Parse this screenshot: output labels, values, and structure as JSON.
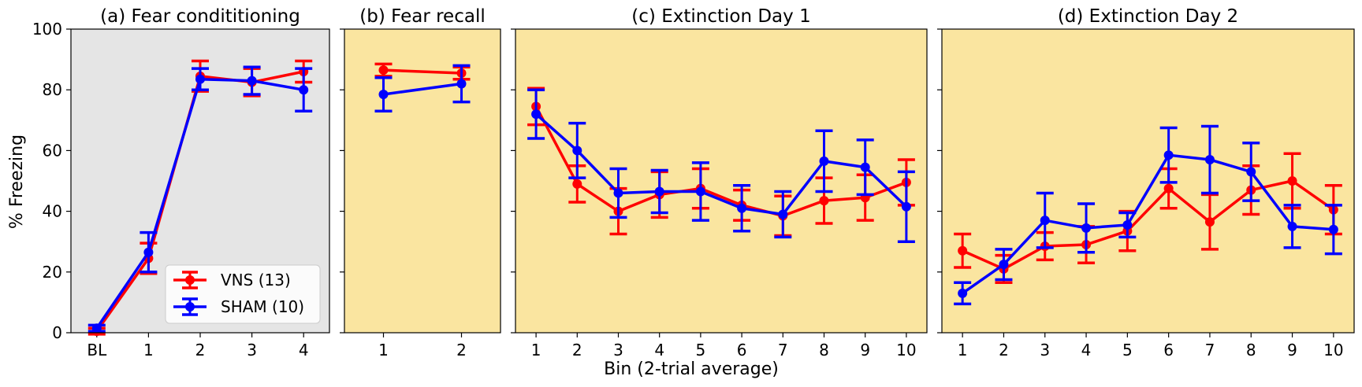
{
  "ylabel": "% Freezing",
  "xlabel": "Bin (2-trial average)",
  "colors": {
    "VNS": "#ff0000",
    "SHAM": "#0000ff",
    "bg_conditioning": "#e5e5e5",
    "bg_other": "#fae5a0"
  },
  "legend": [
    "VNS (13)",
    "SHAM (10)"
  ],
  "legend_placement": "lower-right (panel a)",
  "chart_data": [
    {
      "type": "line",
      "title": "(a) Fear condititioning",
      "categories": [
        "BL",
        "1",
        "2",
        "3",
        "4"
      ],
      "ylim": [
        0,
        100
      ],
      "yticks": [
        "0",
        "20",
        "40",
        "60",
        "80",
        "100"
      ],
      "series": [
        {
          "name": "VNS (13)",
          "values": [
            0.5,
            24.5,
            84.5,
            82.5,
            86
          ],
          "errors": [
            1,
            5,
            5,
            4.5,
            3.5
          ]
        },
        {
          "name": "SHAM (10)",
          "values": [
            1.5,
            26.5,
            83.5,
            83,
            80
          ],
          "errors": [
            1,
            6.5,
            3.5,
            4.5,
            7
          ]
        }
      ]
    },
    {
      "type": "line",
      "title": "(b) Fear recall",
      "categories": [
        "1",
        "2"
      ],
      "ylim": [
        0,
        100
      ],
      "series": [
        {
          "name": "VNS (13)",
          "values": [
            86.5,
            85.5
          ],
          "errors": [
            2,
            2
          ]
        },
        {
          "name": "SHAM (10)",
          "values": [
            78.5,
            82
          ],
          "errors": [
            5.5,
            6
          ]
        }
      ]
    },
    {
      "type": "line",
      "title": "(c) Extinction Day 1",
      "categories": [
        "1",
        "2",
        "3",
        "4",
        "5",
        "6",
        "7",
        "8",
        "9",
        "10"
      ],
      "ylim": [
        0,
        100
      ],
      "series": [
        {
          "name": "VNS (13)",
          "values": [
            74.5,
            49,
            40,
            45.5,
            47.5,
            42,
            38.5,
            43.5,
            44.5,
            49.5
          ],
          "errors": [
            6,
            6,
            7.5,
            7.5,
            6.5,
            5,
            6.5,
            7.5,
            7.5,
            7.5
          ]
        },
        {
          "name": "SHAM (10)",
          "values": [
            72,
            60,
            46,
            46.5,
            46.5,
            41,
            39,
            56.5,
            54.5,
            41.5
          ],
          "errors": [
            8,
            9,
            8,
            7,
            9.5,
            7.5,
            7.5,
            10,
            9,
            11.5
          ]
        }
      ]
    },
    {
      "type": "line",
      "title": "(d) Extinction Day 2",
      "categories": [
        "1",
        "2",
        "3",
        "4",
        "5",
        "6",
        "7",
        "8",
        "9",
        "10"
      ],
      "ylim": [
        0,
        100
      ],
      "series": [
        {
          "name": "VNS (13)",
          "values": [
            27,
            21,
            28.5,
            29,
            33.5,
            47.5,
            36.5,
            47,
            50,
            40.5
          ],
          "errors": [
            5.5,
            4.5,
            4.5,
            6,
            6.5,
            6.5,
            9,
            8,
            9,
            8
          ]
        },
        {
          "name": "SHAM (10)",
          "values": [
            13,
            22.5,
            37,
            34.5,
            35.5,
            58.5,
            57,
            53,
            35,
            34
          ],
          "errors": [
            3.5,
            5,
            9,
            8,
            4,
            9,
            11,
            9.5,
            7,
            8
          ]
        }
      ]
    }
  ]
}
